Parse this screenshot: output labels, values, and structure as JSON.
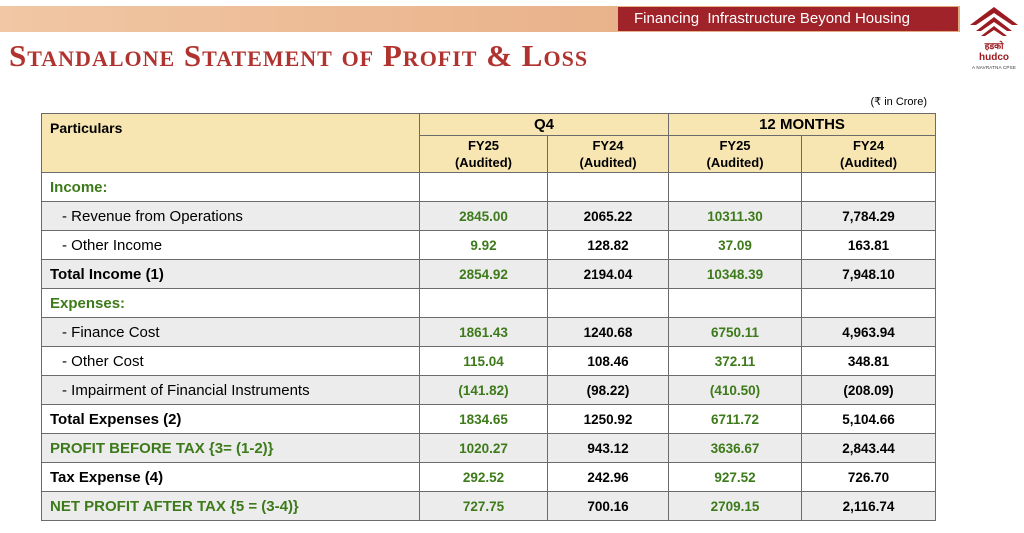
{
  "header": {
    "tagline": "Financing  Infrastructure Beyond Housing",
    "title": "Standalone Statement of Profit & Loss"
  },
  "logo": {
    "script_text": "हडको",
    "name": "hudco",
    "subtitle": "A NAVRATNA CPSE",
    "brand_color": "#9b1b21"
  },
  "unit_note": "(₹ in Crore)",
  "table": {
    "particulars_header": "Particulars",
    "group_headers": [
      "Q4",
      "12 MONTHS"
    ],
    "sub_headers": [
      {
        "year": "FY25",
        "status": "(Audited)"
      },
      {
        "year": "FY24",
        "status": "(Audited)"
      },
      {
        "year": "FY25",
        "status": "(Audited)"
      },
      {
        "year": "FY24",
        "status": "(Audited)"
      }
    ],
    "rows": [
      {
        "label": "Income:",
        "values": [
          "",
          "",
          "",
          ""
        ]
      },
      {
        "label": "- Revenue from Operations",
        "values": [
          "2845.00",
          "2065.22",
          "10311.30",
          "7,784.29"
        ]
      },
      {
        "label": "- Other Income",
        "values": [
          "9.92",
          "128.82",
          "37.09",
          "163.81"
        ]
      },
      {
        "label": "Total Income (1)",
        "values": [
          "2854.92",
          "2194.04",
          "10348.39",
          "7,948.10"
        ]
      },
      {
        "label": "Expenses:",
        "values": [
          "",
          "",
          "",
          ""
        ]
      },
      {
        "label": "- Finance Cost",
        "values": [
          "1861.43",
          "1240.68",
          "6750.11",
          "4,963.94"
        ]
      },
      {
        "label": "- Other Cost",
        "values": [
          "115.04",
          "108.46",
          "372.11",
          "348.81"
        ]
      },
      {
        "label": "- Impairment of Financial Instruments",
        "values": [
          "(141.82)",
          "(98.22)",
          "(410.50)",
          "(208.09)"
        ]
      },
      {
        "label": "Total Expenses (2)",
        "values": [
          "1834.65",
          "1250.92",
          "6711.72",
          "5,104.66"
        ]
      },
      {
        "label": "PROFIT BEFORE TAX {3= (1-2)}",
        "values": [
          "1020.27",
          "943.12",
          "3636.67",
          "2,843.44"
        ]
      },
      {
        "label": "Tax Expense (4)",
        "values": [
          "292.52",
          "242.96",
          "927.52",
          "726.70"
        ]
      },
      {
        "label": "NET PROFIT AFTER TAX {5 = (3-4)}",
        "values": [
          "727.75",
          "700.16",
          "2709.15",
          "2,116.74"
        ]
      }
    ]
  },
  "colors": {
    "title_red": "#b0332f",
    "tagline_bg": "#a0232a",
    "header_fill": "#f7e6b2",
    "green_text": "#3d7a1a",
    "row_grey": "#ececec"
  }
}
